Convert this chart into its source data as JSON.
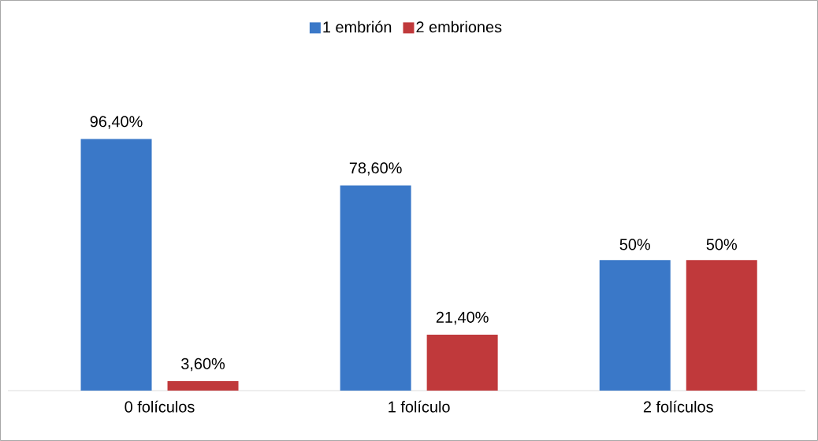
{
  "chart_data": {
    "type": "bar",
    "categories": [
      "0 folículos",
      "1 folículo",
      "2 folículos"
    ],
    "series": [
      {
        "name": "1 embrión",
        "color": "#3a78c8",
        "values": [
          96.4,
          78.6,
          50
        ],
        "value_labels": [
          "96,40%",
          "78,60%",
          "50%"
        ]
      },
      {
        "name": "2 embriones",
        "color": "#c0393b",
        "values": [
          3.6,
          21.4,
          50
        ],
        "value_labels": [
          "3,60%",
          "21,40%",
          "50%"
        ]
      }
    ],
    "legend": "top"
  }
}
